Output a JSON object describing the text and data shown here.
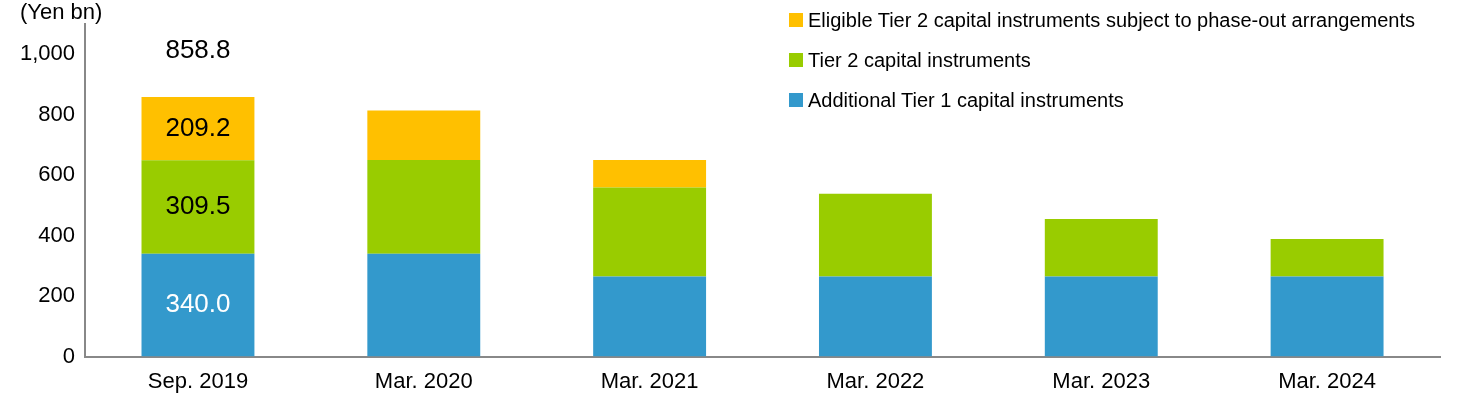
{
  "chart_data": {
    "type": "bar",
    "stacked": true,
    "ylabel": "(Yen bn)",
    "categories": [
      "Sep. 2019",
      "Mar. 2020",
      "Mar. 2021",
      "Mar. 2022",
      "Mar. 2023",
      "Mar. 2024"
    ],
    "series": [
      {
        "name": "Additional Tier 1 capital instruments",
        "color": "#3399cc",
        "values": [
          340.0,
          340,
          265,
          265,
          265,
          265
        ],
        "value_labels": [
          "340.0",
          null,
          null,
          null,
          null,
          null
        ]
      },
      {
        "name": "Tier 2 capital instruments",
        "color": "#99cc00",
        "values": [
          309.5,
          310,
          294,
          274,
          190,
          124
        ],
        "value_labels": [
          "309.5",
          null,
          null,
          null,
          null,
          null
        ]
      },
      {
        "name": "Eligible Tier 2 capital instruments subject to phase-out arrangements",
        "color": "#ffc000",
        "values": [
          209.2,
          164,
          91,
          null,
          null,
          null
        ],
        "value_labels": [
          "209.2",
          null,
          null,
          null,
          null,
          null
        ]
      }
    ],
    "totals": [
      "858.8",
      null,
      null,
      null,
      null,
      null
    ],
    "ylim": [
      0,
      1100
    ],
    "yticks": [
      0,
      200,
      400,
      600,
      800,
      {
        "value": 1000,
        "label": "1,000"
      }
    ],
    "grid": false,
    "legend": "top right"
  }
}
